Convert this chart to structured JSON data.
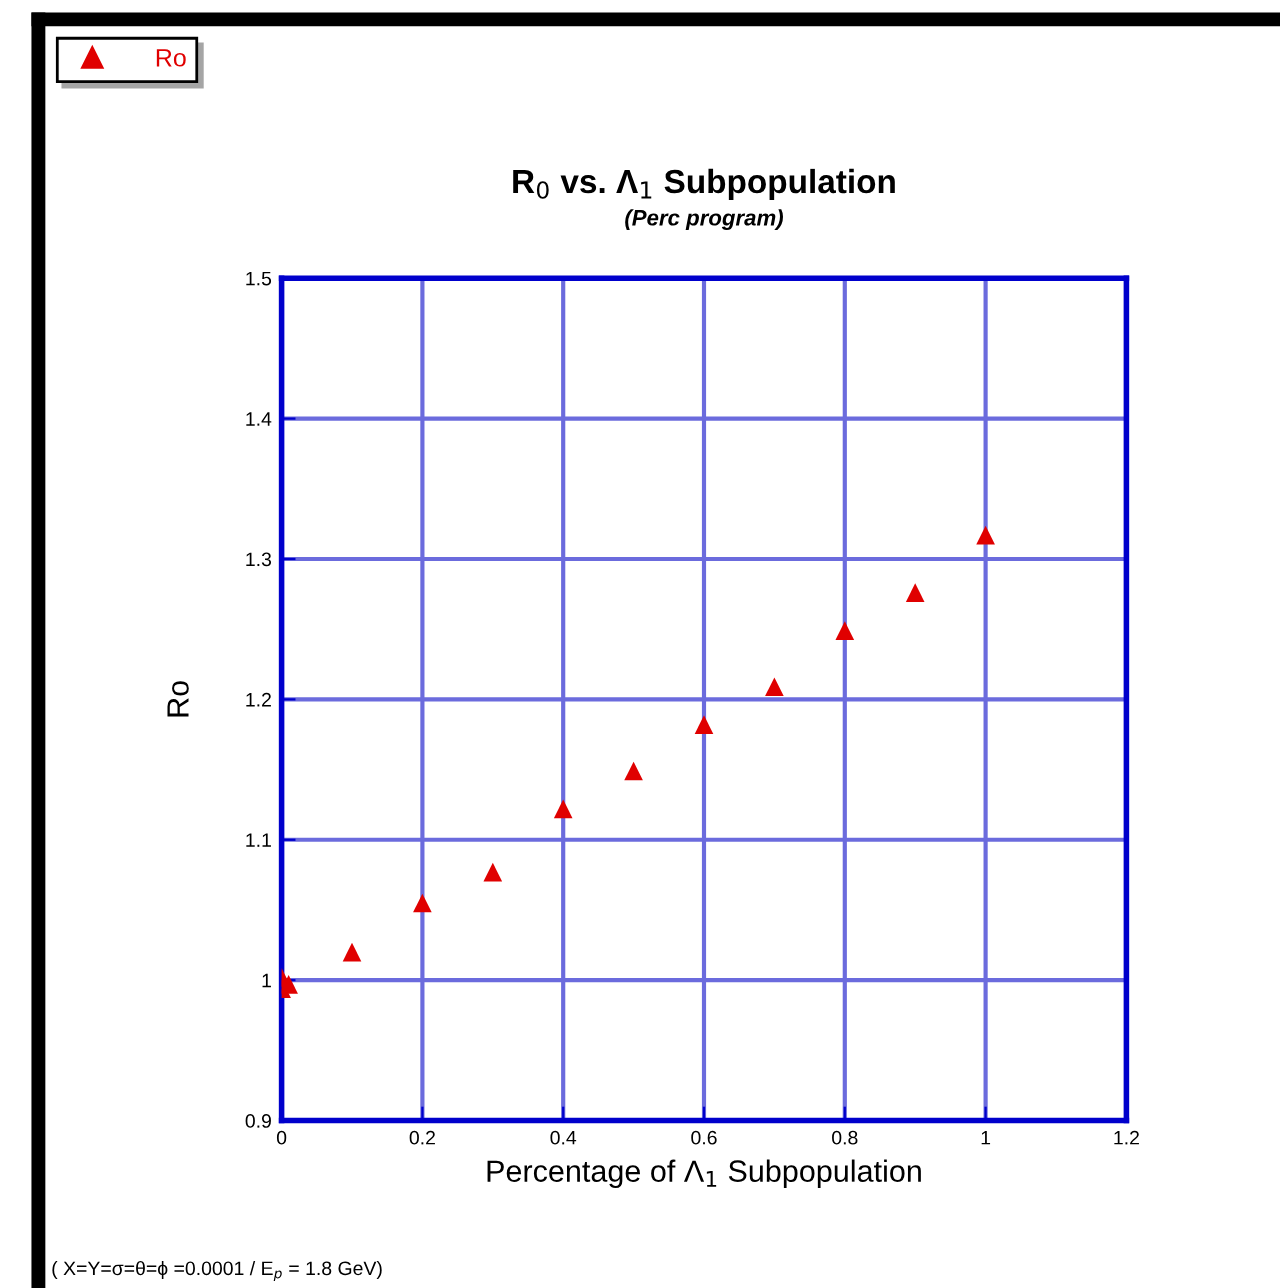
{
  "chart_data": {
    "type": "scatter",
    "title": "R$_{0}$ vs. Λ$_{1}$ Subpopulation",
    "subtitle": "(Perc program)",
    "xlabel": "Percentage of Λ$_{1}$ Subpopulation",
    "ylabel": "Ro",
    "annotations": [
      "( X=Y=σ=θ=ϕ =0.0001 / E$_{p}$ = 1.8 GeV)"
    ],
    "series": [
      {
        "name": "Ro",
        "color": "#e00000",
        "x": [
          0,
          0,
          0.01,
          0.1,
          0.2,
          0.3,
          0.4,
          0.5,
          0.6,
          0.7,
          0.8,
          0.9,
          1
        ],
        "values": [
          1.002,
          0.994,
          0.997,
          1.02,
          1.055,
          1.077,
          1.122,
          1.149,
          1.182,
          1.209,
          1.249,
          1.276,
          1.317
        ]
      }
    ],
    "xlim": [
      0,
      1.2
    ],
    "xticks": [
      0,
      0.2,
      0.4,
      0.6,
      0.8,
      1,
      1.2
    ],
    "ylim": [
      0.9,
      1.5
    ],
    "yticks": [
      0.9,
      1,
      1.1,
      1.2,
      1.3,
      1.4,
      1.5
    ],
    "grid": true,
    "legend": "top left",
    "marker": "triangle"
  }
}
